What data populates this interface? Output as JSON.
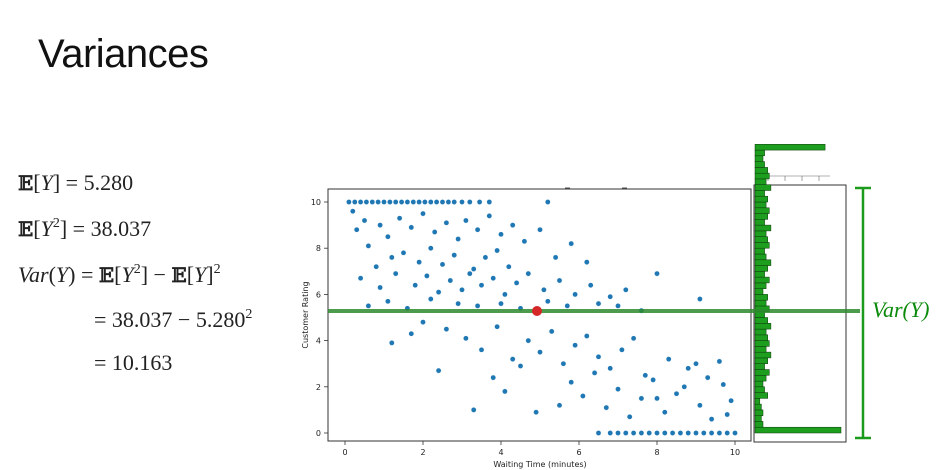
{
  "slide": {
    "title": "Variances"
  },
  "equations": {
    "ey": "5.280",
    "ey2": "38.037",
    "var_sub_line": "= 38.037 − 5.280",
    "var_result": "= 10.163"
  },
  "annotation": {
    "var_label": "Var(Y)"
  },
  "colors": {
    "points": "#1f77b4",
    "mean_line": "#2e8b2e",
    "hist": "#1e9e1e",
    "bracket": "#1c9a1c",
    "mean_marker": "#d62728"
  },
  "chart_data": {
    "type": "scatter",
    "xlabel": "Waiting Time (minutes)",
    "ylabel": "Customer Rating",
    "xlim": [
      0,
      10
    ],
    "ylim": [
      0,
      10
    ],
    "x_ticks": [
      0,
      2,
      4,
      6,
      8,
      10
    ],
    "y_ticks": [
      0,
      2,
      4,
      6,
      8,
      10
    ],
    "mean_y": 5.28,
    "mean_point": {
      "x": 4.9,
      "y": 5.28
    },
    "histogram": {
      "orientation": "horizontal",
      "bin_width": 0.25,
      "counts": [
        54,
        5,
        4,
        5,
        4,
        3,
        8,
        6,
        5,
        7,
        9,
        6,
        8,
        10,
        7,
        9,
        8,
        7,
        10,
        8,
        6,
        9,
        7,
        8,
        5,
        7,
        9,
        6,
        8,
        10,
        7,
        6,
        9,
        8,
        7,
        10,
        6,
        8,
        9,
        7,
        8,
        6,
        10,
        7,
        9,
        8,
        6,
        5,
        6,
        44
      ]
    },
    "points": [
      [
        0.1,
        10
      ],
      [
        0.25,
        10
      ],
      [
        0.4,
        10
      ],
      [
        0.55,
        10
      ],
      [
        0.7,
        10
      ],
      [
        0.85,
        10
      ],
      [
        1.0,
        10
      ],
      [
        1.15,
        10
      ],
      [
        1.3,
        10
      ],
      [
        1.45,
        10
      ],
      [
        1.6,
        10
      ],
      [
        1.75,
        10
      ],
      [
        1.9,
        10
      ],
      [
        2.05,
        10
      ],
      [
        2.2,
        10
      ],
      [
        2.35,
        10
      ],
      [
        2.5,
        10
      ],
      [
        2.65,
        10
      ],
      [
        2.8,
        10
      ],
      [
        3.0,
        10
      ],
      [
        3.2,
        10
      ],
      [
        3.45,
        10
      ],
      [
        3.7,
        10
      ],
      [
        5.2,
        10
      ],
      [
        0.2,
        9.6
      ],
      [
        0.5,
        9.2
      ],
      [
        0.3,
        8.8
      ],
      [
        0.9,
        9.0
      ],
      [
        1.1,
        8.5
      ],
      [
        0.6,
        8.1
      ],
      [
        1.4,
        9.3
      ],
      [
        1.7,
        8.9
      ],
      [
        2.0,
        9.5
      ],
      [
        2.3,
        8.7
      ],
      [
        2.6,
        9.1
      ],
      [
        2.9,
        8.4
      ],
      [
        3.1,
        9.2
      ],
      [
        3.4,
        8.8
      ],
      [
        3.7,
        9.4
      ],
      [
        4.0,
        8.6
      ],
      [
        4.3,
        9.0
      ],
      [
        1.2,
        7.6
      ],
      [
        0.8,
        7.2
      ],
      [
        1.5,
        7.8
      ],
      [
        1.9,
        7.4
      ],
      [
        2.2,
        8.0
      ],
      [
        2.5,
        7.3
      ],
      [
        2.8,
        7.7
      ],
      [
        3.3,
        7.1
      ],
      [
        3.6,
        7.6
      ],
      [
        3.9,
        7.9
      ],
      [
        4.2,
        7.2
      ],
      [
        4.6,
        8.3
      ],
      [
        5.0,
        8.8
      ],
      [
        5.4,
        7.6
      ],
      [
        5.8,
        8.2
      ],
      [
        6.2,
        7.4
      ],
      [
        0.4,
        6.7
      ],
      [
        0.9,
        6.3
      ],
      [
        1.3,
        6.9
      ],
      [
        1.8,
        6.4
      ],
      [
        2.1,
        6.8
      ],
      [
        2.4,
        6.1
      ],
      [
        2.7,
        6.6
      ],
      [
        3.0,
        6.2
      ],
      [
        3.2,
        6.9
      ],
      [
        3.5,
        6.4
      ],
      [
        3.8,
        6.7
      ],
      [
        4.1,
        6.0
      ],
      [
        4.4,
        6.5
      ],
      [
        4.7,
        6.9
      ],
      [
        5.1,
        6.2
      ],
      [
        5.5,
        6.6
      ],
      [
        5.9,
        6.0
      ],
      [
        6.3,
        6.4
      ],
      [
        6.8,
        5.9
      ],
      [
        7.2,
        6.2
      ],
      [
        8.0,
        6.9
      ],
      [
        9.1,
        5.8
      ],
      [
        0.6,
        5.5
      ],
      [
        1.1,
        5.7
      ],
      [
        1.6,
        5.4
      ],
      [
        2.2,
        5.8
      ],
      [
        2.9,
        5.6
      ],
      [
        3.4,
        5.5
      ],
      [
        4.0,
        5.6
      ],
      [
        4.5,
        5.4
      ],
      [
        5.2,
        5.7
      ],
      [
        5.7,
        5.5
      ],
      [
        6.5,
        5.6
      ],
      [
        7.0,
        5.5
      ],
      [
        7.6,
        5.3
      ],
      [
        1.2,
        3.9
      ],
      [
        1.7,
        4.3
      ],
      [
        2.4,
        2.7
      ],
      [
        2.0,
        4.8
      ],
      [
        2.6,
        4.5
      ],
      [
        3.1,
        4.1
      ],
      [
        3.5,
        3.6
      ],
      [
        3.9,
        4.6
      ],
      [
        4.3,
        3.2
      ],
      [
        4.7,
        4.0
      ],
      [
        5.0,
        3.5
      ],
      [
        5.3,
        4.4
      ],
      [
        5.6,
        3.0
      ],
      [
        5.9,
        3.8
      ],
      [
        6.2,
        4.2
      ],
      [
        6.5,
        3.3
      ],
      [
        6.8,
        2.8
      ],
      [
        7.1,
        3.6
      ],
      [
        7.4,
        4.1
      ],
      [
        7.7,
        2.5
      ],
      [
        3.3,
        1.0
      ],
      [
        3.8,
        2.4
      ],
      [
        4.1,
        1.8
      ],
      [
        4.5,
        2.9
      ],
      [
        4.9,
        0.9
      ],
      [
        5.5,
        1.2
      ],
      [
        5.8,
        2.2
      ],
      [
        6.1,
        1.6
      ],
      [
        6.4,
        2.6
      ],
      [
        6.7,
        1.1
      ],
      [
        7.0,
        1.9
      ],
      [
        7.3,
        0.7
      ],
      [
        7.6,
        1.5
      ],
      [
        7.9,
        2.3
      ],
      [
        8.2,
        0.9
      ],
      [
        8.5,
        1.7
      ],
      [
        8.8,
        2.8
      ],
      [
        9.1,
        1.2
      ],
      [
        9.4,
        0.6
      ],
      [
        9.7,
        2.1
      ],
      [
        9.9,
        1.4
      ],
      [
        8.3,
        3.2
      ],
      [
        8.7,
        2.0
      ],
      [
        9.0,
        3.0
      ],
      [
        9.3,
        2.4
      ],
      [
        9.6,
        3.1
      ],
      [
        9.8,
        0.8
      ],
      [
        8.0,
        1.5
      ],
      [
        6.5,
        0
      ],
      [
        6.8,
        0
      ],
      [
        7.0,
        0
      ],
      [
        7.2,
        0
      ],
      [
        7.4,
        0
      ],
      [
        7.6,
        0
      ],
      [
        7.8,
        0
      ],
      [
        8.0,
        0
      ],
      [
        8.2,
        0
      ],
      [
        8.4,
        0
      ],
      [
        8.6,
        0
      ],
      [
        8.8,
        0
      ],
      [
        9.0,
        0
      ],
      [
        9.2,
        0
      ],
      [
        9.4,
        0
      ],
      [
        9.6,
        0
      ],
      [
        9.8,
        0
      ],
      [
        10,
        0
      ]
    ]
  }
}
